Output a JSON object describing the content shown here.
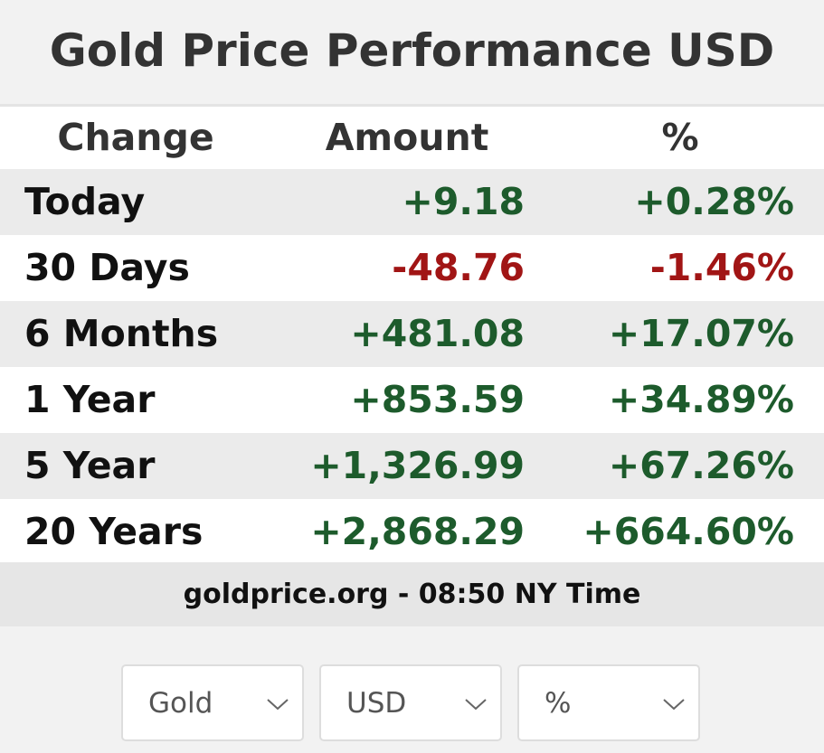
{
  "header": {
    "title": "Gold Price Performance USD"
  },
  "table": {
    "columns": [
      "Change",
      "Amount",
      "%"
    ],
    "rows": [
      [
        "Today",
        "+9.18",
        "+0.28%"
      ],
      [
        "30 Days",
        "-48.76",
        "-1.46%"
      ],
      [
        "6 Months",
        "+481.08",
        "+17.07%"
      ],
      [
        "1 Year",
        "+853.59",
        "+34.89%"
      ],
      [
        "5 Year",
        "+1,326.99",
        "+67.26%"
      ],
      [
        "20 Years",
        "+2,868.29",
        "+664.60%"
      ]
    ]
  },
  "footer": {
    "text": "goldprice.org - 08:50 NY Time"
  },
  "selects": [
    "Gold",
    "USD",
    "%"
  ]
}
